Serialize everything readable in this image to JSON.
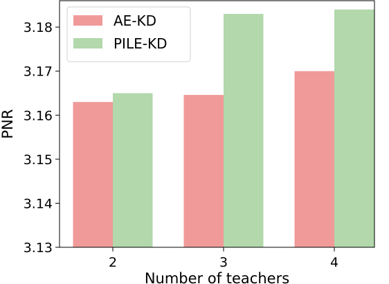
{
  "chart_data": {
    "type": "bar",
    "title": "",
    "xlabel": "Number of teachers",
    "ylabel": "PNR",
    "categories": [
      "2",
      "3",
      "4"
    ],
    "series": [
      {
        "name": "AE-KD",
        "color": "#f09a9a",
        "values": [
          3.163,
          3.1646,
          3.17
        ]
      },
      {
        "name": "PILE-KD",
        "color": "#b2d8ac",
        "values": [
          3.165,
          3.183,
          3.184
        ]
      }
    ],
    "ylim": [
      3.13,
      3.186
    ],
    "yticks": [
      "3.13",
      "3.14",
      "3.15",
      "3.16",
      "3.17",
      "3.18"
    ],
    "grid": false,
    "legend_position": "top-left"
  }
}
